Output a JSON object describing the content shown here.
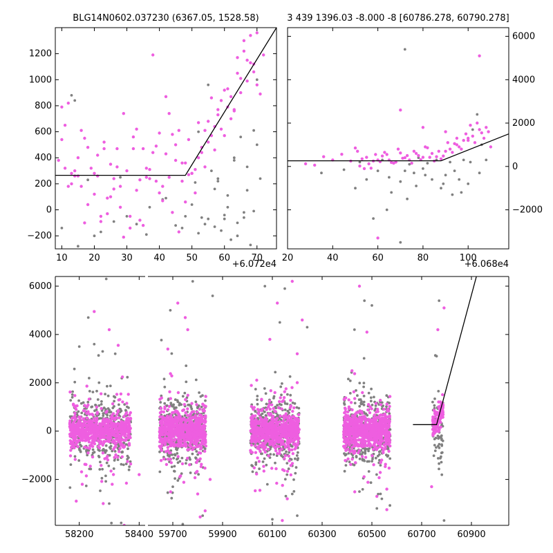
{
  "colors": {
    "highlight": "#ee5ee0",
    "base": "#808080",
    "model": "#000000",
    "axis": "#000000"
  },
  "chart_data": [
    {
      "id": "top_left",
      "type": "scatter",
      "title": "BLG14N0602.037230 (6367.05, 1528.58)",
      "x_offset_label": "+6.072e4",
      "xlim": [
        8,
        76
      ],
      "ylim": [
        -300,
        1400
      ],
      "xticks": [
        10,
        20,
        30,
        40,
        50,
        60,
        70
      ],
      "yticks": [
        -200,
        0,
        200,
        400,
        600,
        800,
        1000,
        1200
      ],
      "ytick_side": "left",
      "model_line": {
        "x": [
          8,
          48,
          76
        ],
        "y": [
          265,
          265,
          1400
        ]
      },
      "series": [
        {
          "name": "highlighted",
          "color": "#ee5ee0",
          "x": [
            9,
            10,
            11,
            12,
            13,
            14,
            15,
            16,
            17,
            18,
            19,
            20,
            21,
            22,
            23,
            24,
            25,
            26,
            27,
            28,
            29,
            30,
            31,
            32,
            33,
            34,
            35,
            36,
            37,
            38,
            39,
            40,
            41,
            42,
            43,
            44,
            45,
            46,
            47,
            48,
            49,
            50,
            51,
            52,
            53,
            54,
            55,
            56,
            57,
            58,
            59,
            60,
            61,
            62,
            63,
            64,
            65,
            66,
            67,
            68,
            69,
            70,
            11,
            14,
            18,
            22,
            27,
            31,
            36,
            40,
            44,
            48,
            52,
            55,
            58,
            61,
            64,
            67,
            70,
            13,
            17,
            21,
            25,
            29,
            33,
            37,
            41,
            45,
            49,
            53,
            57,
            60,
            63,
            66,
            69,
            72,
            10,
            15,
            20,
            24,
            28,
            34,
            38,
            42,
            46,
            50,
            54,
            56,
            59,
            62,
            65,
            68,
            71,
            12,
            16,
            23,
            26,
            32,
            35,
            39,
            43,
            47,
            51
          ],
          "y": [
            380,
            790,
            650,
            820,
            200,
            300,
            260,
            180,
            550,
            480,
            320,
            120,
            260,
            -50,
            470,
            90,
            100,
            160,
            470,
            20,
            740,
            300,
            -50,
            560,
            620,
            230,
            -120,
            320,
            240,
            440,
            220,
            590,
            180,
            870,
            250,
            -20,
            380,
            610,
            220,
            360,
            540,
            280,
            130,
            670,
            480,
            610,
            520,
            860,
            640,
            770,
            840,
            570,
            930,
            870,
            760,
            1050,
            1010,
            1220,
            1150,
            1340,
            1120,
            960,
            320,
            260,
            40,
            -90,
            330,
            -140,
            250,
            130,
            580,
            60,
            400,
            680,
            730,
            790,
            1170,
            990,
            1360,
            280,
            -100,
            420,
            350,
            -210,
            150,
            310,
            70,
            500,
            270,
            440,
            460,
            920,
            770,
            1300,
            1060,
            1190,
            540,
            400,
            280,
            -30,
            180,
            -80,
            1190,
            430,
            -170,
            280,
            330,
            570,
            620,
            700,
            900,
            1130,
            890,
            180,
            610,
            520,
            240,
            470,
            470,
            490,
            740,
            360,
            310
          ]
        },
        {
          "name": "base",
          "color": "#808080",
          "x": [
            10,
            13,
            15,
            18,
            22,
            26,
            30,
            33,
            37,
            41,
            45,
            48,
            50,
            52,
            53,
            55,
            56,
            57,
            58,
            59,
            60,
            61,
            62,
            63,
            64,
            65,
            66,
            67,
            68,
            69,
            70,
            14,
            20,
            28,
            36,
            42,
            47,
            51,
            54,
            57,
            60,
            63,
            66,
            69,
            71,
            52,
            55,
            58,
            61,
            64,
            67,
            70
          ],
          "y": [
            -140,
            880,
            -280,
            230,
            -170,
            -90,
            -50,
            -110,
            20,
            80,
            -120,
            -50,
            40,
            -180,
            -60,
            960,
            300,
            -130,
            240,
            -160,
            -70,
            20,
            -230,
            400,
            -100,
            560,
            -20,
            150,
            -270,
            610,
            500,
            840,
            -200,
            250,
            -190,
            90,
            -140,
            210,
            -110,
            160,
            -40,
            380,
            -60,
            -10,
            240,
            600,
            -70,
            220,
            110,
            -200,
            330,
            1000
          ]
        }
      ]
    },
    {
      "id": "top_right",
      "type": "scatter",
      "title": "3 439 1396.03 -8.000 -8 [60786.278, 60790.278]",
      "x_offset_label": "+6.068e4",
      "xlim": [
        20,
        118
      ],
      "ylim": [
        -3800,
        6400
      ],
      "xticks": [
        20,
        40,
        60,
        80,
        100
      ],
      "yticks": [
        -2000,
        0,
        2000,
        4000,
        6000
      ],
      "ytick_side": "right",
      "model_line": {
        "x": [
          20,
          88,
          118
        ],
        "y": [
          260,
          260,
          1500
        ]
      },
      "series": [
        {
          "name": "highlighted",
          "color": "#ee5ee0",
          "x": [
            28,
            32,
            36,
            40,
            44,
            48,
            51,
            53,
            55,
            57,
            59,
            61,
            63,
            65,
            67,
            69,
            71,
            73,
            75,
            77,
            79,
            81,
            83,
            85,
            87,
            89,
            91,
            93,
            95,
            97,
            99,
            101,
            103,
            105,
            107,
            109,
            52,
            56,
            60,
            64,
            68,
            72,
            76,
            80,
            84,
            88,
            92,
            96,
            100,
            104,
            108,
            54,
            58,
            62,
            66,
            70,
            74,
            78,
            82,
            86,
            90,
            94,
            98,
            102,
            106,
            110,
            50,
            70,
            95,
            105,
            60,
            80,
            100,
            90
          ],
          "y": [
            120,
            60,
            450,
            300,
            560,
            250,
            700,
            350,
            420,
            -80,
            550,
            220,
            650,
            300,
            150,
            800,
            380,
            500,
            150,
            600,
            310,
            900,
            420,
            250,
            700,
            480,
            1100,
            650,
            1300,
            800,
            1500,
            1900,
            1100,
            1700,
            1300,
            1600,
            20,
            120,
            300,
            550,
            200,
            400,
            700,
            420,
            600,
            350,
            800,
            900,
            1200,
            2000,
            1800,
            -100,
            250,
            480,
            180,
            620,
            300,
            500,
            860,
            450,
            700,
            1050,
            1200,
            1400,
            1550,
            900,
            850,
            2600,
            1000,
            5100,
            -3300,
            1800,
            1300,
            1600
          ],
          "comment": "-"
        },
        {
          "name": "base",
          "color": "#808080",
          "x": [
            35,
            45,
            50,
            52,
            55,
            60,
            62,
            65,
            68,
            70,
            72,
            74,
            76,
            78,
            80,
            82,
            84,
            86,
            88,
            90,
            92,
            94,
            96,
            98,
            100,
            102,
            104,
            106,
            108,
            58,
            66,
            73,
            81,
            89,
            97,
            105,
            70,
            72,
            64,
            77,
            93,
            101
          ],
          "y": [
            -300,
            -150,
            -1000,
            200,
            -600,
            -200,
            300,
            -500,
            200,
            -3500,
            5400,
            100,
            -300,
            400,
            -100,
            150,
            -600,
            300,
            -1000,
            -400,
            200,
            -200,
            -600,
            300,
            -800,
            1700,
            2400,
            1000,
            300,
            -2400,
            -1200,
            -1500,
            -400,
            -800,
            -1200,
            -300,
            -700,
            -200,
            -2000,
            -900,
            -1300,
            200
          ]
        }
      ]
    },
    {
      "id": "bottom",
      "type": "scatter",
      "title": "",
      "broken_axis": true,
      "ylim": [
        -3900,
        6400
      ],
      "yticks": [
        -2000,
        0,
        2000,
        4000,
        6000
      ],
      "segments": [
        {
          "xlim": [
            58120,
            58420
          ],
          "xticks": [
            58200,
            58400
          ]
        },
        {
          "xlim": [
            59600,
            61050
          ],
          "xticks": [
            59700,
            59900,
            60100,
            60300,
            60500,
            60700,
            60900
          ]
        }
      ],
      "clusters": [
        {
          "segment": 0,
          "center": 58270,
          "spread": 120
        },
        {
          "segment": 1,
          "center": 59740,
          "spread": 110
        },
        {
          "segment": 1,
          "center": 60110,
          "spread": 115
        },
        {
          "segment": 1,
          "center": 60480,
          "spread": 110
        },
        {
          "segment": 1,
          "center": 60765,
          "spread": 25
        }
      ],
      "outliers": {
        "highlighted_x": [
          58250,
          58300,
          58330,
          58210,
          58350,
          59680,
          59720,
          59760,
          59800,
          59830,
          60050,
          60090,
          60140,
          60180,
          60220,
          60420,
          60450,
          60520,
          60560,
          60790,
          60765,
          60740,
          58190,
          58280,
          59750,
          60120,
          60480,
          59810,
          60160,
          58310,
          58400,
          59850,
          60200,
          60560
        ],
        "highlighted_y": [
          4950,
          4200,
          3550,
          -2200,
          -3900,
          3400,
          5300,
          4200,
          -2600,
          -3300,
          -2450,
          3800,
          -3700,
          6200,
          4600,
          2500,
          6000,
          -2700,
          -3250,
          5100,
          4200,
          -2300,
          -2900,
          -3000,
          4700,
          5300,
          4100,
          -3550,
          -2800,
          -2200,
          -1800,
          -2000,
          3200,
          -2400
        ],
        "base_x": [
          58230,
          58290,
          58340,
          58200,
          59700,
          59780,
          59820,
          59860,
          60070,
          60100,
          60150,
          60200,
          60240,
          60430,
          60470,
          60520,
          60770,
          60790,
          60760,
          58300,
          58250,
          59740,
          60130,
          60500,
          60540,
          59690,
          60080,
          58320,
          60180,
          60450
        ],
        "base_y": [
          4700,
          6300,
          -3800,
          3500,
          -2300,
          6200,
          -3500,
          5600,
          6000,
          -3650,
          5900,
          -3500,
          4300,
          4200,
          5400,
          -3200,
          5400,
          -3700,
          3100,
          -3000,
          3600,
          -3850,
          4500,
          5200,
          -2800,
          5000,
          -2200,
          3200,
          -2600,
          -2500
        ]
      },
      "model_line": {
        "x": [
          60665,
          60760,
          60920
        ],
        "y": [
          270,
          270,
          6400
        ]
      }
    }
  ]
}
